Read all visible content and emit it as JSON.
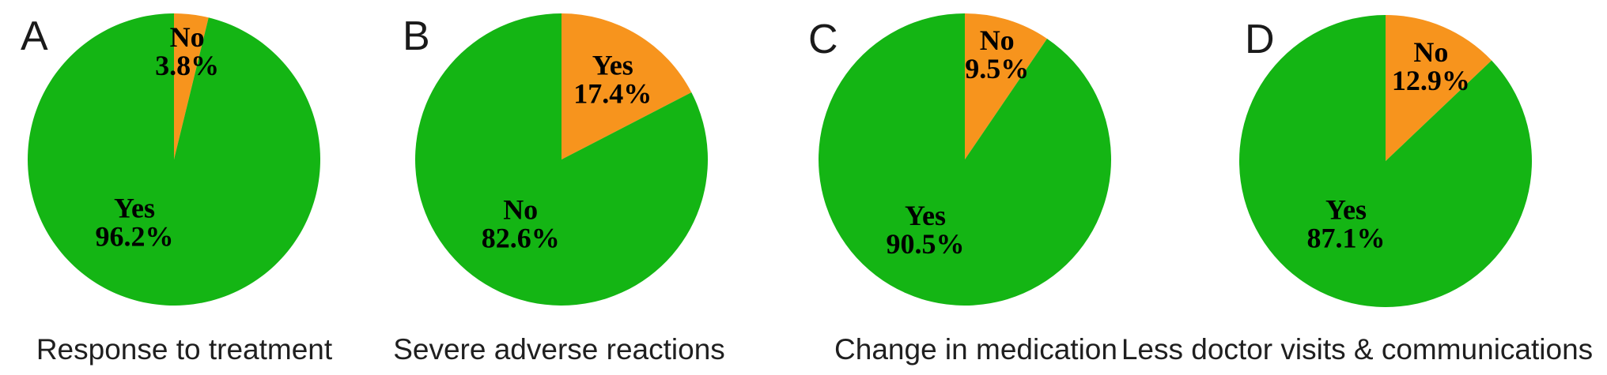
{
  "figure": {
    "background": "#ffffff",
    "slice_colors": {
      "minority_orange": "#f7941d",
      "majority_green": "#14b514"
    },
    "text_color": "#000000"
  },
  "chart_data": [
    {
      "type": "pie",
      "panel_label": "A",
      "title": "Response to treatment",
      "start_angle_deg": 0,
      "direction": "clockwise",
      "legend_position": "none",
      "slices": [
        {
          "label": "No",
          "value": 3.8,
          "color": "#f7941d",
          "label_xy": [
            0.09,
            -0.74
          ]
        },
        {
          "label": "Yes",
          "value": 96.2,
          "color": "#14b514",
          "label_xy": [
            -0.27,
            0.43
          ]
        }
      ]
    },
    {
      "type": "pie",
      "panel_label": "B",
      "title": "Severe adverse reactions",
      "start_angle_deg": 0,
      "direction": "clockwise",
      "legend_position": "none",
      "slices": [
        {
          "label": "Yes",
          "value": 17.4,
          "color": "#f7941d",
          "label_xy": [
            0.35,
            -0.55
          ]
        },
        {
          "label": "No",
          "value": 82.6,
          "color": "#14b514",
          "label_xy": [
            -0.28,
            0.44
          ]
        }
      ]
    },
    {
      "type": "pie",
      "panel_label": "C",
      "title": "Change in medication",
      "start_angle_deg": 0,
      "direction": "clockwise",
      "legend_position": "none",
      "slices": [
        {
          "label": "No",
          "value": 9.5,
          "color": "#f7941d",
          "label_xy": [
            0.22,
            -0.72
          ]
        },
        {
          "label": "Yes",
          "value": 90.5,
          "color": "#14b514",
          "label_xy": [
            -0.27,
            0.48
          ]
        }
      ]
    },
    {
      "type": "pie",
      "panel_label": "D",
      "title": "Less doctor visits & communications",
      "start_angle_deg": 0,
      "direction": "clockwise",
      "legend_position": "none",
      "slices": [
        {
          "label": "No",
          "value": 12.9,
          "color": "#f7941d",
          "label_xy": [
            0.31,
            -0.65
          ]
        },
        {
          "label": "Yes",
          "value": 87.1,
          "color": "#14b514",
          "label_xy": [
            -0.27,
            0.43
          ]
        }
      ]
    }
  ]
}
